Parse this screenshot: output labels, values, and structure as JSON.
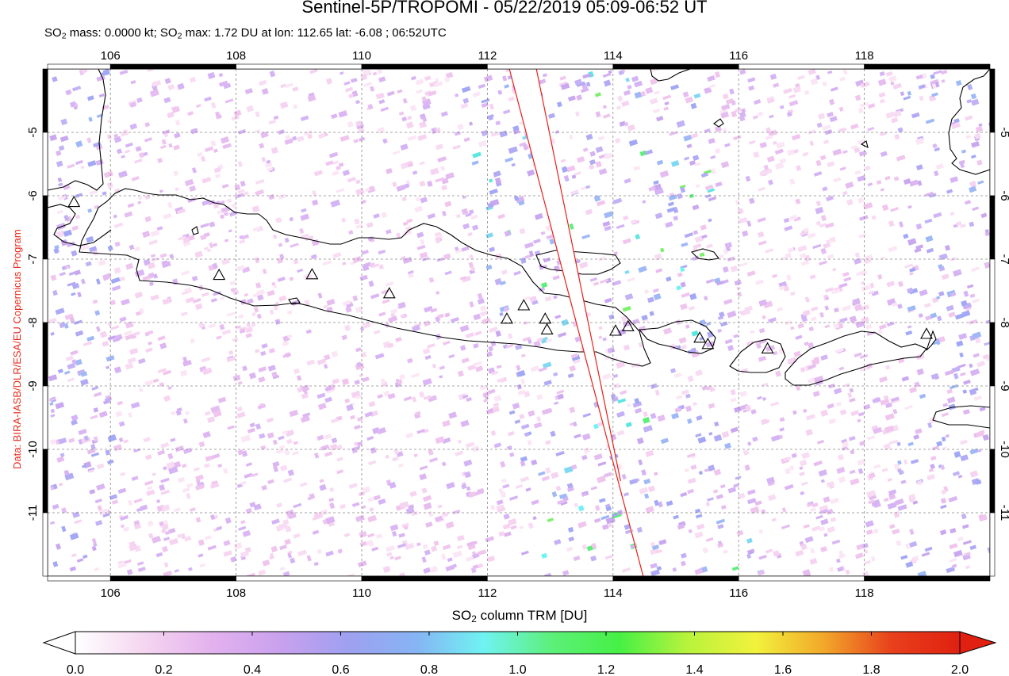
{
  "header": {
    "title": "Sentinel-5P/TROPOMI - 05/22/2019 05:09-06:52 UT",
    "so2_mass_prefix": "SO",
    "so2_mass_text": " mass: 0.0000 kt; SO",
    "so2_max_text": " max: 1.72 DU at lon: 112.65 lat: -6.08 ; 06:52UTC",
    "sub_digit": "2"
  },
  "credit": "Data: BIRA-IASB/DLR/ESA/EU Copernicus Program",
  "colorbar": {
    "title_prefix": "SO",
    "title_suffix": " column TRM [DU]",
    "sub_digit": "2",
    "ticks": [
      "0.0",
      "0.2",
      "0.4",
      "0.6",
      "0.8",
      "1.0",
      "1.2",
      "1.4",
      "1.6",
      "1.8",
      "2.0"
    ],
    "range": [
      0.0,
      2.0
    ],
    "colors": [
      "#ffffff",
      "#f5d6f0",
      "#e3b2ee",
      "#c9a1ee",
      "#9fa0f0",
      "#86b4f4",
      "#6ff3f2",
      "#5cf07a",
      "#46f046",
      "#b8f33c",
      "#f2f23c",
      "#f2a82a",
      "#e8401c",
      "#e02010"
    ]
  },
  "chart_data": {
    "type": "heatmap",
    "title": "Sentinel-5P/TROPOMI - 05/22/2019 05:09-06:52 UT",
    "colorbar_label": "SO2 column TRM [DU]",
    "x_ticks": [
      "106",
      "108",
      "110",
      "112",
      "114",
      "116",
      "118"
    ],
    "y_ticks": [
      "-5",
      "-6",
      "-7",
      "-8",
      "-9",
      "-10",
      "-11"
    ],
    "xlim": [
      105.0,
      120.0
    ],
    "ylim": [
      -12.0,
      -4.0
    ],
    "grid": true,
    "so2_max": {
      "value": 1.72,
      "unit": "DU",
      "lon": 112.65,
      "lat": -6.08,
      "time": "06:52UTC"
    },
    "so2_mass_kt": 0.0,
    "volcanoes": [
      {
        "lon": 105.42,
        "lat": -6.1
      },
      {
        "lon": 107.73,
        "lat": -7.25
      },
      {
        "lon": 109.21,
        "lat": -7.24
      },
      {
        "lon": 110.44,
        "lat": -7.54
      },
      {
        "lon": 112.31,
        "lat": -7.94
      },
      {
        "lon": 112.58,
        "lat": -7.73
      },
      {
        "lon": 112.92,
        "lat": -7.94
      },
      {
        "lon": 112.95,
        "lat": -8.11
      },
      {
        "lon": 114.04,
        "lat": -8.13
      },
      {
        "lon": 114.24,
        "lat": -8.06
      },
      {
        "lon": 115.38,
        "lat": -8.24
      },
      {
        "lon": 115.51,
        "lat": -8.34
      },
      {
        "lon": 116.46,
        "lat": -8.41
      },
      {
        "lon": 118.99,
        "lat": -8.18
      }
    ],
    "swath_gap_edges": [
      {
        "name": "",
        "lon": [
          112.35,
          114.48
        ],
        "lat": [
          -4.0,
          -12.0
        ]
      },
      {
        "name": "",
        "lon": [
          112.78,
          114.12
        ],
        "lat": [
          -4.0,
          -10.5
        ]
      }
    ]
  }
}
